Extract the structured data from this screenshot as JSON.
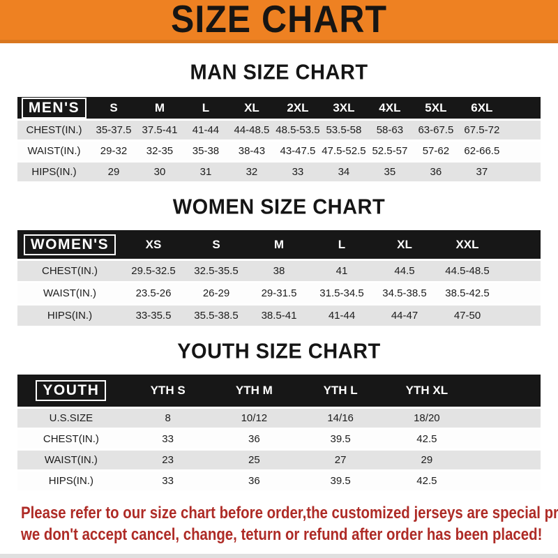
{
  "banner": {
    "title": "SIZE CHART",
    "bg_color": "#ee8122",
    "text_color": "#171513"
  },
  "sections": [
    {
      "heading": "MAN SIZE CHART",
      "label": "MEN'S",
      "columns": [
        "S",
        "M",
        "L",
        "XL",
        "2XL",
        "3XL",
        "4XL",
        "5XL",
        "6XL"
      ],
      "rows": [
        {
          "label": "CHEST(IN.)",
          "values": [
            "35-37.5",
            "37.5-41",
            "41-44",
            "44-48.5",
            "48.5-53.5",
            "53.5-58",
            "58-63",
            "63-67.5",
            "67.5-72"
          ]
        },
        {
          "label": "WAIST(IN.)",
          "values": [
            "29-32",
            "32-35",
            "35-38",
            "38-43",
            "43-47.5",
            "47.5-52.5",
            "52.5-57",
            "57-62",
            "62-66.5"
          ]
        },
        {
          "label": "HIPS(IN.)",
          "values": [
            "29",
            "30",
            "31",
            "32",
            "33",
            "34",
            "35",
            "36",
            "37"
          ]
        }
      ]
    },
    {
      "heading": "WOMEN SIZE CHART",
      "label": "WOMEN'S",
      "columns": [
        "XS",
        "S",
        "M",
        "L",
        "XL",
        "XXL"
      ],
      "rows": [
        {
          "label": "CHEST(IN.)",
          "values": [
            "29.5-32.5",
            "32.5-35.5",
            "38",
            "41",
            "44.5",
            "44.5-48.5"
          ]
        },
        {
          "label": "WAIST(IN.)",
          "values": [
            "23.5-26",
            "26-29",
            "29-31.5",
            "31.5-34.5",
            "34.5-38.5",
            "38.5-42.5"
          ]
        },
        {
          "label": "HIPS(IN.)",
          "values": [
            "33-35.5",
            "35.5-38.5",
            "38.5-41",
            "41-44",
            "44-47",
            "47-50"
          ]
        }
      ]
    },
    {
      "heading": "YOUTH SIZE CHART",
      "label": "YOUTH",
      "columns": [
        "YTH S",
        "YTH M",
        "YTH L",
        "YTH XL"
      ],
      "rows": [
        {
          "label": "U.S.SIZE",
          "values": [
            "8",
            "10/12",
            "14/16",
            "18/20"
          ]
        },
        {
          "label": "CHEST(IN.)",
          "values": [
            "33",
            "36",
            "39.5",
            "42.5"
          ]
        },
        {
          "label": "WAIST(IN.)",
          "values": [
            "23",
            "25",
            "27",
            "29"
          ]
        },
        {
          "label": "HIPS(IN.)",
          "values": [
            "33",
            "36",
            "39.5",
            "42.5"
          ]
        }
      ]
    }
  ],
  "footer": {
    "line1": "Please refer to our size chart before order,the customized jerseys are special products,",
    "line2": "we don't accept cancel, change, teturn or refund after order has been placed!",
    "text_color": "#ae2b26"
  },
  "colors": {
    "banner_orange": "#ee8122",
    "header_black": "#171717",
    "row_gray": "#e3e3e3",
    "row_white": "#fdfdfd",
    "note_red": "#ae2b26"
  }
}
